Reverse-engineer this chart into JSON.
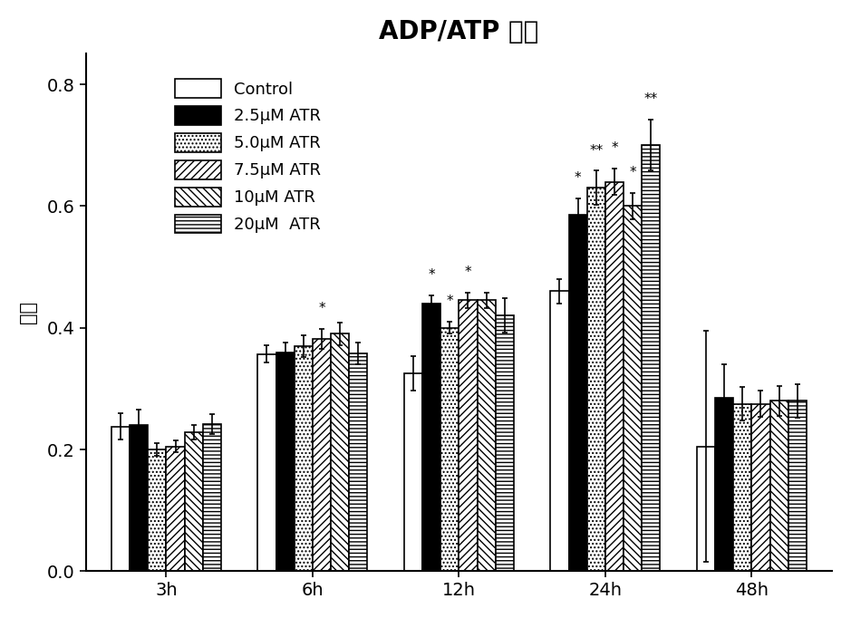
{
  "title": "ADP/ATP 比值",
  "ylabel": "比率",
  "xlabel": "",
  "time_points": [
    "3h",
    "6h",
    "12h",
    "24h",
    "48h"
  ],
  "groups": [
    "Control",
    "2.5μM ATR",
    "5.0μM ATR",
    "7.5μM ATR",
    "10μM ATR",
    "20μM  ATR"
  ],
  "values": [
    [
      0.238,
      0.357,
      0.325,
      0.46,
      0.205
    ],
    [
      0.24,
      0.36,
      0.44,
      0.585,
      0.285
    ],
    [
      0.2,
      0.37,
      0.4,
      0.63,
      0.275
    ],
    [
      0.205,
      0.382,
      0.445,
      0.64,
      0.275
    ],
    [
      0.228,
      0.39,
      0.445,
      0.6,
      0.28
    ],
    [
      0.242,
      0.358,
      0.42,
      0.7,
      0.28
    ]
  ],
  "errors": [
    [
      0.022,
      0.014,
      0.028,
      0.02,
      0.19
    ],
    [
      0.025,
      0.016,
      0.013,
      0.028,
      0.055
    ],
    [
      0.01,
      0.018,
      0.01,
      0.028,
      0.028
    ],
    [
      0.01,
      0.016,
      0.013,
      0.022,
      0.022
    ],
    [
      0.012,
      0.018,
      0.013,
      0.022,
      0.025
    ],
    [
      0.016,
      0.018,
      0.028,
      0.042,
      0.028
    ]
  ],
  "significance": [
    [
      null,
      null,
      null,
      null,
      null
    ],
    [
      null,
      null,
      "*",
      "*",
      null
    ],
    [
      null,
      null,
      "*",
      "**",
      null
    ],
    [
      null,
      "*",
      "*",
      "*",
      null
    ],
    [
      null,
      null,
      null,
      "*",
      null
    ],
    [
      null,
      null,
      null,
      "**",
      null
    ]
  ],
  "ylim": [
    0.0,
    0.85
  ],
  "yticks": [
    0.0,
    0.2,
    0.4,
    0.6,
    0.8
  ],
  "bar_width": 0.125,
  "bg_color": "#ffffff",
  "title_fontsize": 20,
  "label_fontsize": 15,
  "tick_fontsize": 14,
  "legend_fontsize": 13
}
